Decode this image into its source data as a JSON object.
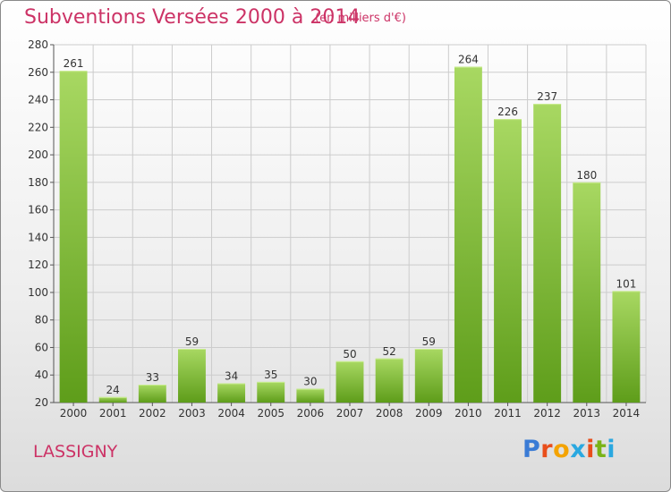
{
  "title": "Subventions Versées 2000 à 2014",
  "unit_note": "(en milliers d'€)",
  "commune": "LASSIGNY",
  "logo": {
    "text": "Proxiti",
    "colors": [
      "#3a7bd5",
      "#e94e1b",
      "#f4a300",
      "#2aa8e0",
      "#e94e1b",
      "#7ab317",
      "#2aa8e0"
    ]
  },
  "colors": {
    "bar_light": "#a8d862",
    "bar_dark": "#5e9d1a",
    "grid": "#cccccc",
    "axis": "#555555",
    "title": "#cc3366"
  },
  "chart_data": {
    "type": "bar",
    "title": "Subventions Versées 2000 à 2014",
    "subtitle": "(en milliers d'€)",
    "categories": [
      "2000",
      "2001",
      "2002",
      "2003",
      "2004",
      "2005",
      "2006",
      "2007",
      "2008",
      "2009",
      "2010",
      "2011",
      "2012",
      "2013",
      "2014"
    ],
    "values": [
      261,
      24,
      33,
      59,
      34,
      35,
      30,
      50,
      52,
      59,
      264,
      226,
      237,
      180,
      101
    ],
    "ylim": [
      20,
      280
    ],
    "yticks": [
      20,
      40,
      60,
      80,
      100,
      120,
      140,
      160,
      180,
      200,
      220,
      240,
      260,
      280
    ],
    "grid": true,
    "xlabel": "",
    "ylabel": ""
  }
}
